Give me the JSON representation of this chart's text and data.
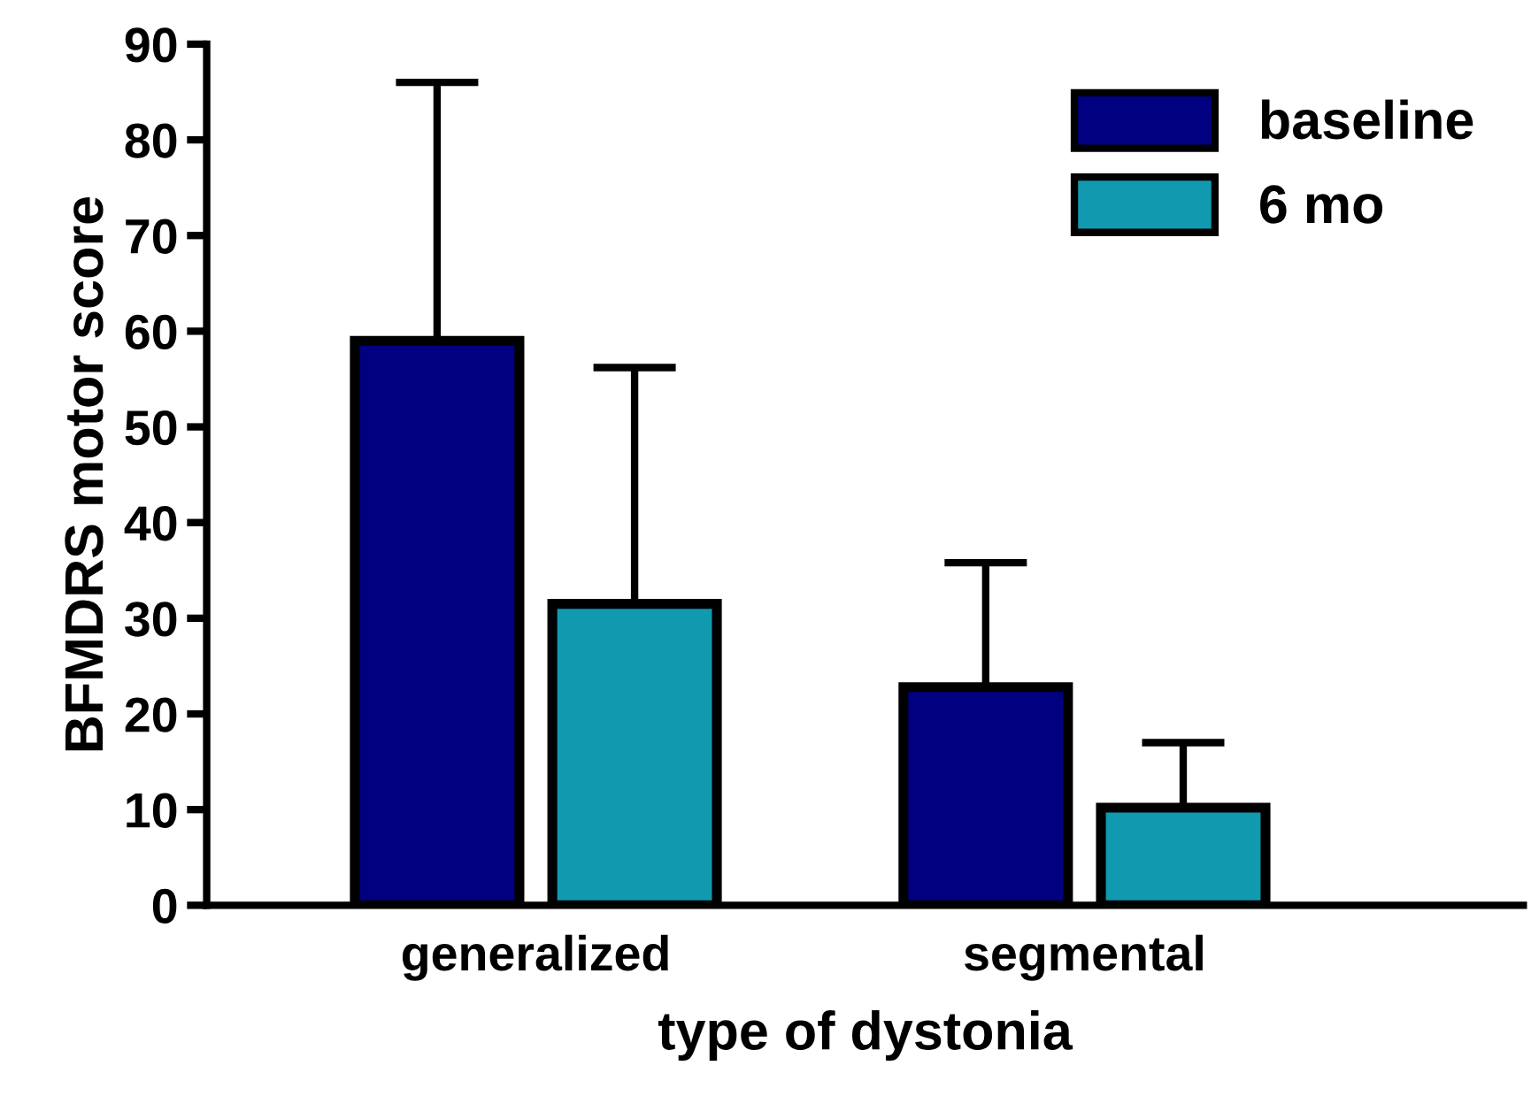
{
  "chart_data": {
    "type": "bar",
    "xlabel": "type of dystonia",
    "ylabel": "BFMDRS motor score",
    "categories": [
      "generalized",
      "segmental"
    ],
    "series": [
      {
        "name": "baseline",
        "color": "#000080",
        "values": [
          59,
          22.8
        ],
        "errors": [
          [
            59,
            86
          ],
          [
            22.8,
            35.8
          ]
        ]
      },
      {
        "name": "6 mo",
        "color": "#1199b0",
        "values": [
          31.5,
          10.2
        ],
        "errors": [
          [
            31.5,
            56.2
          ],
          [
            10.2,
            17
          ]
        ]
      }
    ],
    "ylim": [
      0,
      90
    ],
    "yticks": [
      0,
      10,
      20,
      30,
      40,
      50,
      60,
      70,
      80,
      90
    ],
    "grid": false,
    "legend": "top right"
  }
}
